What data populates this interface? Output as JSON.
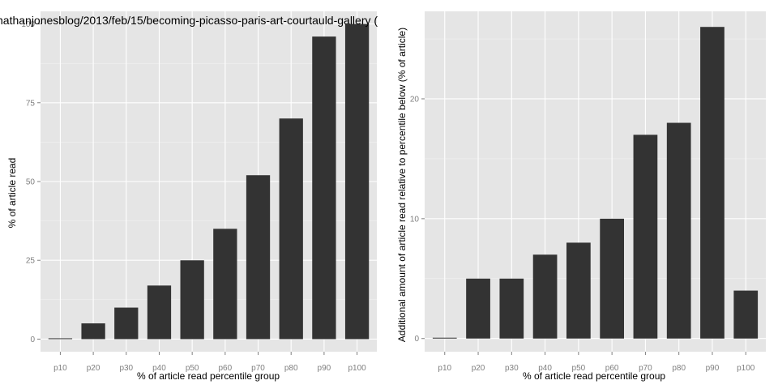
{
  "chart_data": [
    {
      "type": "bar",
      "title": "nathanjonesblog/2013/feb/15/becoming-picasso-paris-art-courtauld-gallery (",
      "xlabel": "% of article read percentile group",
      "ylabel": "% of article read",
      "categories": [
        "p10",
        "p20",
        "p30",
        "p40",
        "p50",
        "p60",
        "p70",
        "p80",
        "p90",
        "p100"
      ],
      "values": [
        0,
        5,
        10,
        17,
        25,
        35,
        52,
        70,
        96,
        100
      ],
      "ylim": [
        -4,
        104
      ],
      "yticks": [
        0,
        25,
        50,
        75,
        100
      ],
      "ytick_labels": [
        "0",
        "25",
        "50",
        "75",
        "100"
      ],
      "grid": true,
      "bar_color": "#333333",
      "panel_color": "#e5e5e5"
    },
    {
      "type": "bar",
      "title": "",
      "xlabel": "% of article read percentile group",
      "ylabel": "Additional amount of article read relative to percentile below (% of article)",
      "categories": [
        "p10",
        "p20",
        "p30",
        "p40",
        "p50",
        "p60",
        "p70",
        "p80",
        "p90",
        "p100"
      ],
      "values": [
        0,
        5,
        5,
        7,
        8,
        10,
        17,
        18,
        26,
        4
      ],
      "ylim": [
        -1.1,
        27.3
      ],
      "yticks": [
        0,
        10,
        20
      ],
      "ytick_labels": [
        "0",
        "10",
        "20"
      ],
      "grid": true,
      "bar_color": "#333333",
      "panel_color": "#e5e5e5"
    }
  ]
}
